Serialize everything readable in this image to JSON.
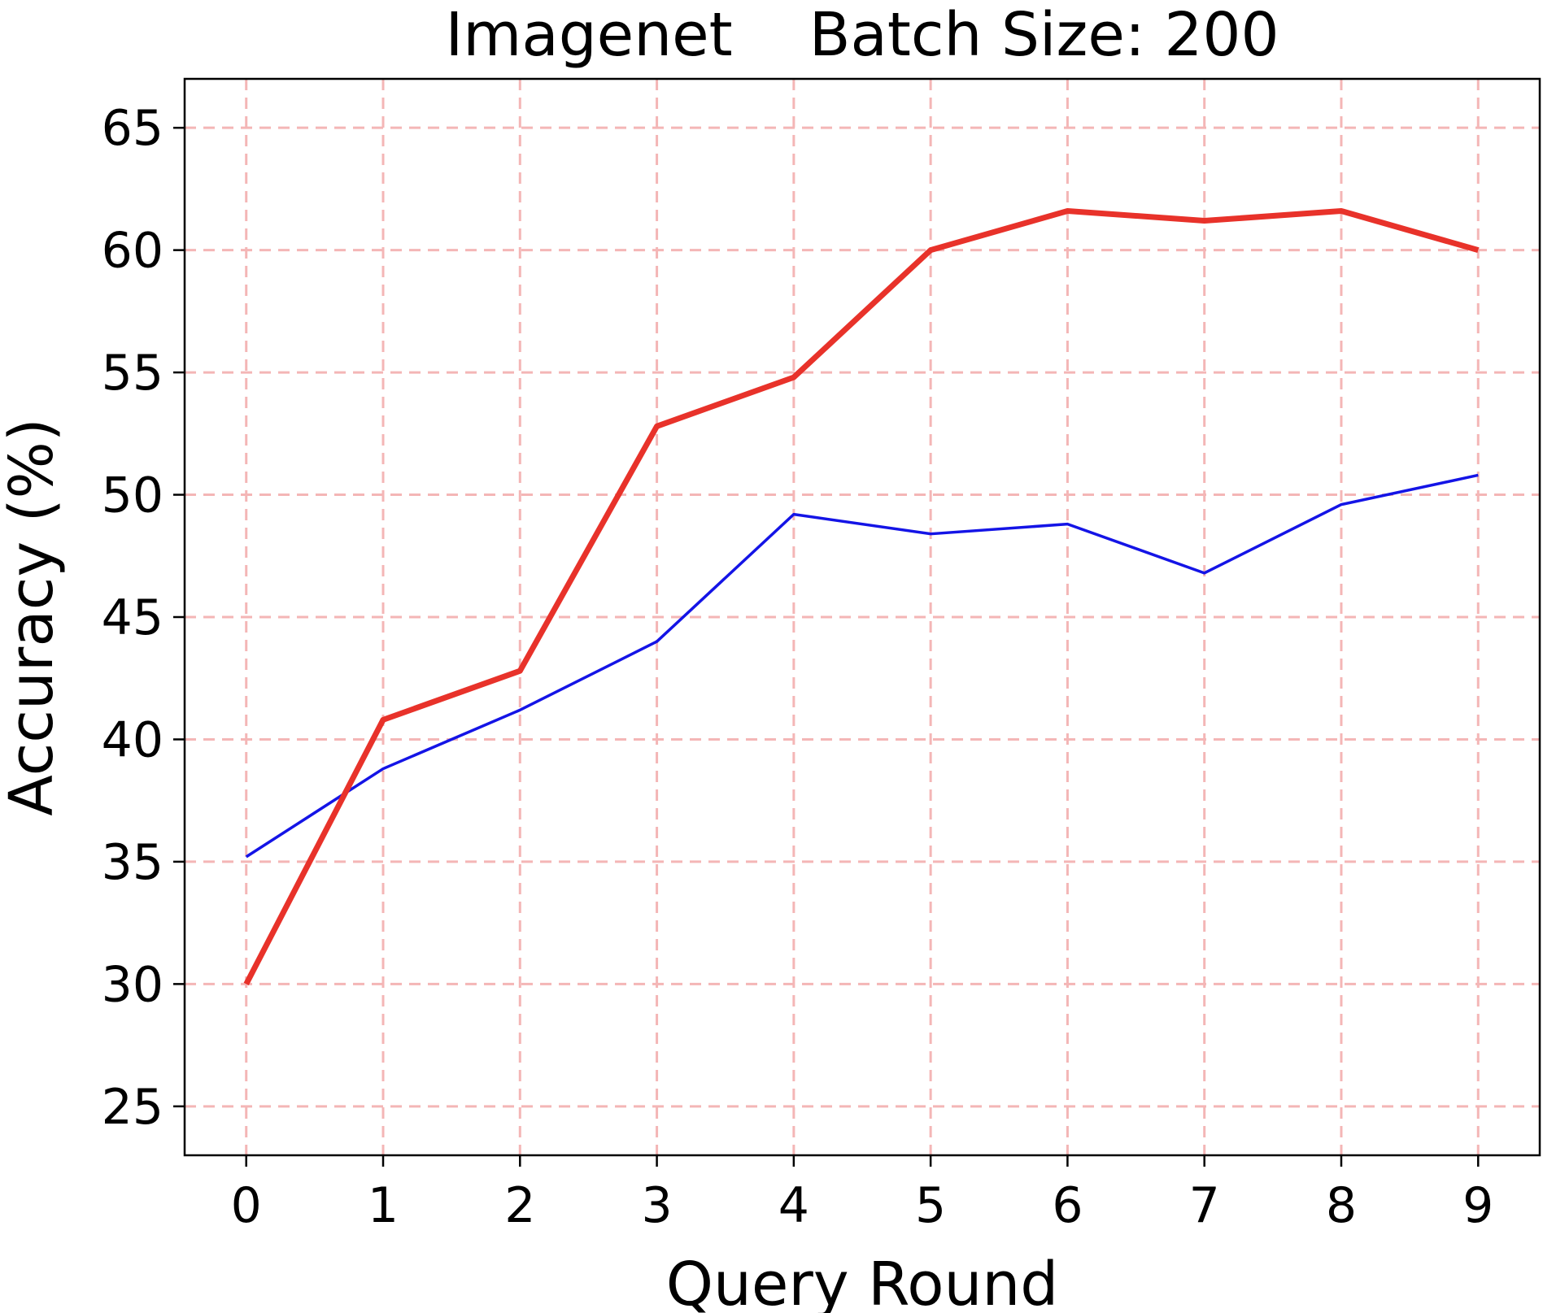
{
  "chart_data": {
    "type": "line",
    "title": "Imagenet    Batch Size: 200",
    "xlabel": "Query Round",
    "ylabel": "Accuracy (%)",
    "x": [
      0,
      1,
      2,
      3,
      4,
      5,
      6,
      7,
      8,
      9
    ],
    "xticks": [
      "0",
      "1",
      "2",
      "3",
      "4",
      "5",
      "6",
      "7",
      "8",
      "9"
    ],
    "yticks": [
      25,
      30,
      35,
      40,
      45,
      50,
      55,
      60,
      65
    ],
    "xlim": [
      -0.45,
      9.45
    ],
    "ylim": [
      23,
      67
    ],
    "grid": true,
    "grid_color": "#f4b6b6",
    "series": [
      {
        "color": "#e8322a",
        "values": [
          30.0,
          40.8,
          42.8,
          52.8,
          54.8,
          60.0,
          61.6,
          61.2,
          61.6,
          60.0
        ]
      },
      {
        "color": "#1414e6",
        "values": [
          35.2,
          38.8,
          41.2,
          44.0,
          49.2,
          48.4,
          48.8,
          46.8,
          49.6,
          50.8
        ]
      }
    ]
  }
}
